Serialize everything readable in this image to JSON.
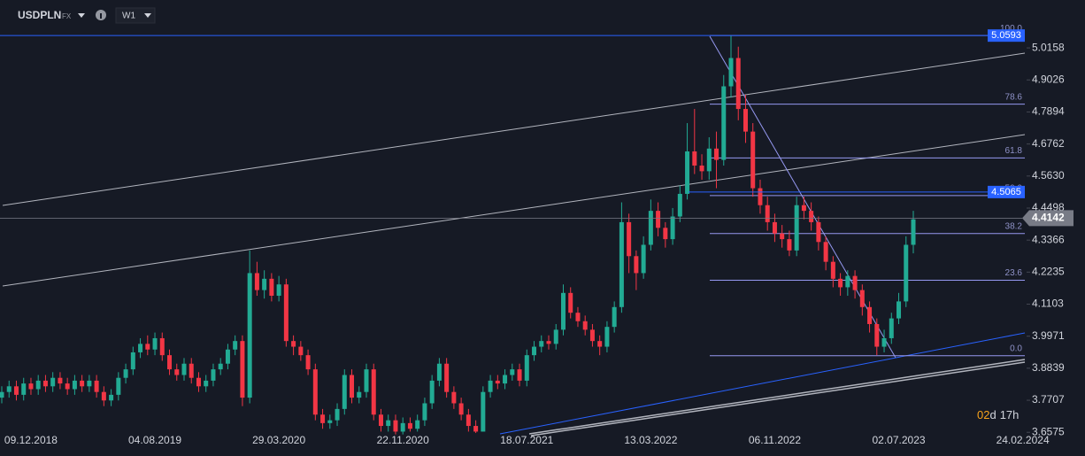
{
  "header": {
    "symbol": "USDPLN",
    "market": "FX",
    "timeframe": "W1",
    "countdown_days": "02",
    "countdown_days_unit": "d",
    "countdown_hours": "17h"
  },
  "chart_data": {
    "type": "candlestick",
    "categories": [
      null,
      null,
      null,
      null,
      "09.12.2018",
      null,
      null,
      null,
      null,
      null,
      null,
      null,
      null,
      null,
      null,
      null,
      null,
      null,
      null,
      null,
      null,
      "04.08.2019",
      null,
      null,
      null,
      null,
      null,
      null,
      null,
      null,
      null,
      null,
      null,
      null,
      null,
      null,
      null,
      null,
      "29.03.2020",
      null,
      null,
      null,
      null,
      null,
      null,
      null,
      null,
      null,
      null,
      null,
      null,
      null,
      null,
      null,
      null,
      "22.11.2020",
      null,
      null,
      null,
      null,
      null,
      null,
      null,
      null,
      null,
      null,
      null,
      null,
      null,
      null,
      null,
      null,
      "18.07.2021",
      null,
      null,
      null,
      null,
      null,
      null,
      null,
      null,
      null,
      null,
      null,
      null,
      null,
      null,
      null,
      null,
      "13.03.2022",
      null,
      null,
      null,
      null,
      null,
      null,
      null,
      null,
      null,
      null,
      null,
      null,
      null,
      null,
      null,
      null,
      "06.11.2022",
      null,
      null,
      null,
      null,
      null,
      null,
      null,
      null,
      null,
      null,
      null,
      null,
      null,
      null,
      null,
      null,
      "02.07.2023",
      null,
      null,
      null,
      null,
      null,
      null,
      null,
      null,
      null,
      null,
      null,
      null,
      null,
      null,
      null,
      null,
      "24.02.2024"
    ],
    "open": [
      3.78,
      3.8,
      3.82,
      3.79,
      3.83,
      3.81,
      3.84,
      3.82,
      3.85,
      3.83,
      3.81,
      3.84,
      3.82,
      3.84,
      3.8,
      3.77,
      3.79,
      3.85,
      3.88,
      3.94,
      3.97,
      3.95,
      3.99,
      3.93,
      3.88,
      3.86,
      3.9,
      3.85,
      3.82,
      3.84,
      3.88,
      3.9,
      3.95,
      3.98,
      3.78,
      4.22,
      4.16,
      4.2,
      4.14,
      4.18,
      3.98,
      3.96,
      3.93,
      3.88,
      3.72,
      3.69,
      3.7,
      3.74,
      3.86,
      3.78,
      3.8,
      3.88,
      3.72,
      3.68,
      3.7,
      3.66,
      3.69,
      3.67,
      3.7,
      3.76,
      3.84,
      3.9,
      3.8,
      3.76,
      3.72,
      3.68,
      3.66,
      3.8,
      3.84,
      3.83,
      3.86,
      3.88,
      3.84,
      3.93,
      3.96,
      3.98,
      3.97,
      4.02,
      4.15,
      4.08,
      4.05,
      4.02,
      3.98,
      3.96,
      4.03,
      4.1,
      4.4,
      4.28,
      4.22,
      4.32,
      4.44,
      4.38,
      4.34,
      4.42,
      4.5,
      4.65,
      4.6,
      4.58,
      4.66,
      4.62,
      4.88,
      4.98,
      4.8,
      4.72,
      4.52,
      4.46,
      4.4,
      4.36,
      4.34,
      4.3,
      4.46,
      4.44,
      4.4,
      4.33,
      4.26,
      4.2,
      4.17,
      4.21,
      4.16,
      4.1,
      4.04,
      3.96,
      3.99,
      4.06,
      4.12,
      4.32,
      null,
      null,
      null,
      null,
      null,
      null,
      null,
      null,
      null,
      null,
      null,
      null,
      null,
      null,
      null
    ],
    "high": [
      3.82,
      3.84,
      3.84,
      3.85,
      3.85,
      3.86,
      3.86,
      3.87,
      3.87,
      3.85,
      3.86,
      3.86,
      3.86,
      3.86,
      3.82,
      3.81,
      3.87,
      3.9,
      3.96,
      3.99,
      4.0,
      4.01,
      4.01,
      3.95,
      3.9,
      3.92,
      3.92,
      3.87,
      3.86,
      3.9,
      3.92,
      3.97,
      4.0,
      4.0,
      4.3,
      4.26,
      4.23,
      4.22,
      4.21,
      4.2,
      4.0,
      3.98,
      3.95,
      3.9,
      3.74,
      3.72,
      3.76,
      3.88,
      3.88,
      3.82,
      3.9,
      3.9,
      3.74,
      3.72,
      3.72,
      3.71,
      3.71,
      3.72,
      3.78,
      3.86,
      3.92,
      3.92,
      3.82,
      3.78,
      3.74,
      3.7,
      3.82,
      3.86,
      3.86,
      3.88,
      3.9,
      3.9,
      3.95,
      3.98,
      4.0,
      4.0,
      4.04,
      4.18,
      4.17,
      4.1,
      4.07,
      4.04,
      4.0,
      4.05,
      4.12,
      4.47,
      4.43,
      4.3,
      4.35,
      4.48,
      4.47,
      4.4,
      4.45,
      4.53,
      4.75,
      4.8,
      4.64,
      4.7,
      4.72,
      4.92,
      5.06,
      5.02,
      4.85,
      4.75,
      4.55,
      4.49,
      4.43,
      4.39,
      4.37,
      4.49,
      4.49,
      4.47,
      4.42,
      4.35,
      4.28,
      4.22,
      4.23,
      4.23,
      4.18,
      4.12,
      4.06,
      4.02,
      4.08,
      4.15,
      4.35,
      4.44,
      null,
      null,
      null,
      null,
      null,
      null,
      null,
      null,
      null,
      null,
      null,
      null,
      null,
      null,
      null
    ],
    "low": [
      3.76,
      3.78,
      3.77,
      3.77,
      3.79,
      3.79,
      3.8,
      3.8,
      3.81,
      3.79,
      3.79,
      3.8,
      3.8,
      3.78,
      3.75,
      3.75,
      3.77,
      3.83,
      3.86,
      3.92,
      3.93,
      3.93,
      3.91,
      3.86,
      3.84,
      3.84,
      3.83,
      3.8,
      3.8,
      3.82,
      3.86,
      3.88,
      3.93,
      3.75,
      3.76,
      4.14,
      4.13,
      4.12,
      4.12,
      3.96,
      3.93,
      3.91,
      3.86,
      3.7,
      3.67,
      3.67,
      3.68,
      3.72,
      3.76,
      3.76,
      3.78,
      3.7,
      3.66,
      3.66,
      3.65,
      3.65,
      3.66,
      3.66,
      3.68,
      3.74,
      3.82,
      3.78,
      3.74,
      3.7,
      3.66,
      3.655,
      3.66,
      3.78,
      3.81,
      3.81,
      3.84,
      3.82,
      3.82,
      3.91,
      3.94,
      3.95,
      3.95,
      4.0,
      4.06,
      4.03,
      4.0,
      3.96,
      3.93,
      3.94,
      4.01,
      4.08,
      4.22,
      4.16,
      4.2,
      4.3,
      4.35,
      4.31,
      4.32,
      4.4,
      4.48,
      4.57,
      4.55,
      4.55,
      4.52,
      4.6,
      4.84,
      4.76,
      4.68,
      4.49,
      4.43,
      4.37,
      4.33,
      4.31,
      4.28,
      4.28,
      4.41,
      4.37,
      4.3,
      4.23,
      4.17,
      4.14,
      4.14,
      4.13,
      4.07,
      4.01,
      3.93,
      3.94,
      3.97,
      4.04,
      4.1,
      4.29,
      null,
      null,
      null,
      null,
      null,
      null,
      null,
      null,
      null,
      null,
      null,
      null,
      null,
      null,
      null
    ],
    "close": [
      3.8,
      3.82,
      3.79,
      3.83,
      3.81,
      3.84,
      3.82,
      3.85,
      3.83,
      3.81,
      3.84,
      3.82,
      3.84,
      3.8,
      3.77,
      3.79,
      3.85,
      3.88,
      3.94,
      3.97,
      3.95,
      3.99,
      3.93,
      3.88,
      3.86,
      3.9,
      3.85,
      3.82,
      3.84,
      3.88,
      3.9,
      3.95,
      3.98,
      3.78,
      4.22,
      4.16,
      4.2,
      4.14,
      4.18,
      3.98,
      3.96,
      3.93,
      3.88,
      3.72,
      3.69,
      3.7,
      3.74,
      3.86,
      3.78,
      3.8,
      3.88,
      3.72,
      3.68,
      3.7,
      3.66,
      3.69,
      3.67,
      3.7,
      3.76,
      3.84,
      3.9,
      3.8,
      3.76,
      3.72,
      3.68,
      3.66,
      3.8,
      3.84,
      3.83,
      3.86,
      3.88,
      3.84,
      3.93,
      3.96,
      3.98,
      3.97,
      4.02,
      4.15,
      4.08,
      4.05,
      4.02,
      3.98,
      3.96,
      4.03,
      4.1,
      4.4,
      4.28,
      4.22,
      4.32,
      4.44,
      4.38,
      4.34,
      4.42,
      4.5,
      4.65,
      4.6,
      4.58,
      4.66,
      4.62,
      4.88,
      4.98,
      4.8,
      4.72,
      4.52,
      4.46,
      4.4,
      4.36,
      4.34,
      4.3,
      4.46,
      4.44,
      4.4,
      4.33,
      4.26,
      4.2,
      4.17,
      4.21,
      4.16,
      4.1,
      4.04,
      3.96,
      3.99,
      4.06,
      4.12,
      4.32,
      4.41,
      null,
      null,
      null,
      null,
      null,
      null,
      null,
      null,
      null,
      null,
      null,
      null,
      null,
      null,
      null
    ],
    "up_color": "#22ab94",
    "down_color": "#f23645",
    "ylim": [
      3.652,
      5.185
    ],
    "yticks": [
      5.0158,
      4.9026,
      4.7894,
      4.6762,
      {
        "value": 4.563,
        "label": "4.5630"
      },
      4.4498,
      4.3366,
      4.2235,
      4.1103,
      3.9971,
      3.8839,
      3.7707,
      3.6575
    ],
    "fib_levels": [
      {
        "label": "100.0",
        "value": 5.0593
      },
      {
        "label": "78.6",
        "value": 4.817
      },
      {
        "label": "61.8",
        "value": 4.627
      },
      {
        "label": "50.0",
        "value": 4.494
      },
      {
        "label": "38.2",
        "value": 4.36
      },
      {
        "label": "23.6",
        "value": 4.195
      },
      {
        "label": "0.0",
        "value": 3.928
      }
    ],
    "price_lines": [
      {
        "value": 5.0593,
        "color": "#2962ff"
      },
      {
        "value": 4.5065,
        "color": "#2962ff"
      },
      {
        "value": 4.4142,
        "color": "#787b86"
      }
    ]
  }
}
